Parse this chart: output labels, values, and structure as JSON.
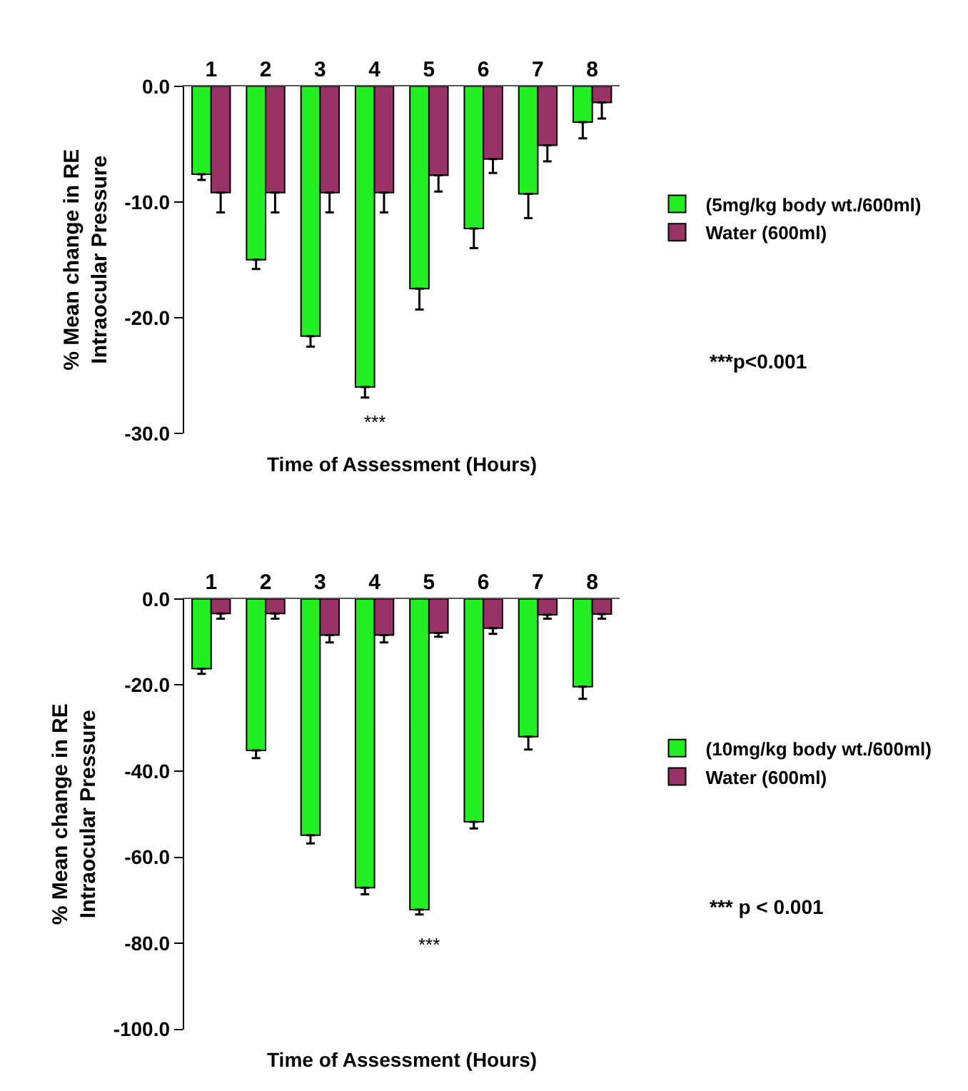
{
  "chart_data": [
    {
      "type": "bar",
      "xlabel": "Time of Assessment (Hours)",
      "ylabel": "% Mean change in RE Intraocular Pressure",
      "categories": [
        "1",
        "2",
        "3",
        "4",
        "5",
        "6",
        "7",
        "8"
      ],
      "series": [
        {
          "name": "(5mg/kg body wt./600ml)",
          "color": "#22ee22",
          "values": [
            -7.6,
            -15.0,
            -21.6,
            -26.0,
            -17.5,
            -12.3,
            -9.3,
            -3.1
          ],
          "errors": [
            [
              -8.1,
              -7.6
            ],
            [
              -15.8,
              -15.0
            ],
            [
              -22.5,
              -21.6
            ],
            [
              -26.9,
              -26.0
            ],
            [
              -19.3,
              -17.5
            ],
            [
              -14.0,
              -12.3
            ],
            [
              -11.4,
              -9.3
            ],
            [
              -4.5,
              -3.1
            ]
          ]
        },
        {
          "name": "Water (600ml)",
          "color": "#993366",
          "values": [
            -9.2,
            -9.2,
            -9.2,
            -9.2,
            -7.7,
            -6.3,
            -5.1,
            -1.4
          ],
          "errors": [
            [
              -10.9,
              -9.2
            ],
            [
              -10.9,
              -9.2
            ],
            [
              -10.9,
              -9.2
            ],
            [
              -10.9,
              -9.2
            ],
            [
              -9.1,
              -7.7
            ],
            [
              -7.5,
              -6.3
            ],
            [
              -6.5,
              -5.1
            ],
            [
              -2.8,
              -1.4
            ]
          ]
        }
      ],
      "ylim": [
        -30,
        0
      ],
      "yticks": [
        {
          "value": 0,
          "label": "0.0"
        },
        {
          "value": -10,
          "label": "-10.0"
        },
        {
          "value": -20,
          "label": "-20.0"
        },
        {
          "value": -30,
          "label": "-30.0"
        }
      ],
      "legend": "right",
      "annotations": [
        "***",
        "***p<0.001"
      ]
    },
    {
      "type": "bar",
      "xlabel": "Time of Assessment (Hours)",
      "ylabel": "% Mean change in RE Intraocular Pressure",
      "categories": [
        "1",
        "2",
        "3",
        "4",
        "5",
        "6",
        "7",
        "8"
      ],
      "series": [
        {
          "name": "(10mg/kg body wt./600ml)",
          "color": "#22ee22",
          "values": [
            -16.2,
            -35.2,
            -54.9,
            -67.1,
            -72.2,
            -51.8,
            -32.0,
            -20.4
          ],
          "errors": [
            [
              -17.4,
              -16.2
            ],
            [
              -37.0,
              -35.2
            ],
            [
              -56.8,
              -54.9
            ],
            [
              -68.6,
              -67.1
            ],
            [
              -73.3,
              -72.2
            ],
            [
              -53.3,
              -51.8
            ],
            [
              -35.0,
              -32.0
            ],
            [
              -23.2,
              -20.4
            ]
          ]
        },
        {
          "name": "Water (600ml)",
          "color": "#993366",
          "values": [
            -3.4,
            -3.4,
            -8.4,
            -8.4,
            -7.9,
            -6.8,
            -3.7,
            -3.5
          ],
          "errors": [
            [
              -4.6,
              -3.4
            ],
            [
              -4.6,
              -3.4
            ],
            [
              -10.1,
              -8.4
            ],
            [
              -10.1,
              -8.4
            ],
            [
              -8.8,
              -7.9
            ],
            [
              -8.1,
              -6.8
            ],
            [
              -4.6,
              -3.7
            ],
            [
              -4.6,
              -3.5
            ]
          ]
        }
      ],
      "ylim": [
        -100,
        0
      ],
      "yticks": [
        {
          "value": 0,
          "label": "0.0"
        },
        {
          "value": -20,
          "label": "-20.0"
        },
        {
          "value": -40,
          "label": "-40.0"
        },
        {
          "value": -60,
          "label": "-60.0"
        },
        {
          "value": -80,
          "label": "-80.0"
        },
        {
          "value": -100,
          "label": "-100.0"
        }
      ],
      "legend": "right",
      "annotations": [
        "***",
        "*** p < 0.001"
      ]
    }
  ]
}
